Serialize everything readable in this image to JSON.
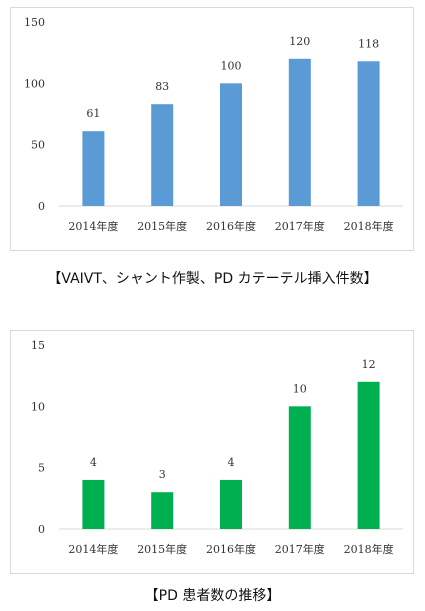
{
  "chart_data": [
    {
      "type": "bar",
      "title": "",
      "xlabel": "",
      "ylabel": "",
      "categories": [
        "2014年度",
        "2015年度",
        "2016年度",
        "2017年度",
        "2018年度"
      ],
      "values": [
        61,
        83,
        100,
        120,
        118
      ],
      "ylim": [
        0,
        150
      ],
      "yticks": [
        0,
        50,
        100,
        150
      ],
      "grid": false,
      "color": "#5b9bd5",
      "data_labels": true,
      "caption": "【VAIVT、シャント作製、PD カテーテル挿入件数】"
    },
    {
      "type": "bar",
      "title": "",
      "xlabel": "",
      "ylabel": "",
      "categories": [
        "2014年度",
        "2015年度",
        "2016年度",
        "2017年度",
        "2018年度"
      ],
      "values": [
        4,
        3,
        4,
        10,
        12
      ],
      "ylim": [
        0,
        15
      ],
      "yticks": [
        0,
        5,
        10,
        15
      ],
      "grid": false,
      "color": "#00b050",
      "data_labels": true,
      "caption": "【PD 患者数の推移】"
    }
  ]
}
